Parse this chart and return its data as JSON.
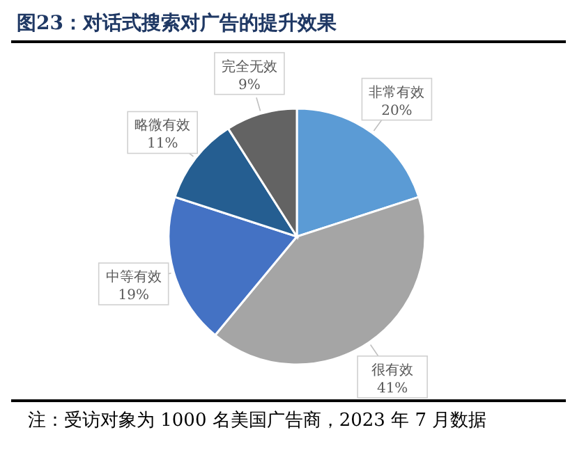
{
  "chart_data": {
    "type": "pie",
    "title": "图23：对话式搜索对广告的提升效果",
    "categories": [
      "非常有效",
      "很有效",
      "中等有效",
      "略微有效",
      "完全无效"
    ],
    "values": [
      20,
      41,
      19,
      11,
      9
    ],
    "value_labels": [
      "20%",
      "41%",
      "19%",
      "11%",
      "9%"
    ],
    "colors": [
      "#5b9bd5",
      "#a5a5a5",
      "#4472c4",
      "#255e91",
      "#636363"
    ],
    "annotations": [
      "注：受访对象为 1000 名美国广告商，2023 年 7 月数据"
    ],
    "legend": false
  }
}
